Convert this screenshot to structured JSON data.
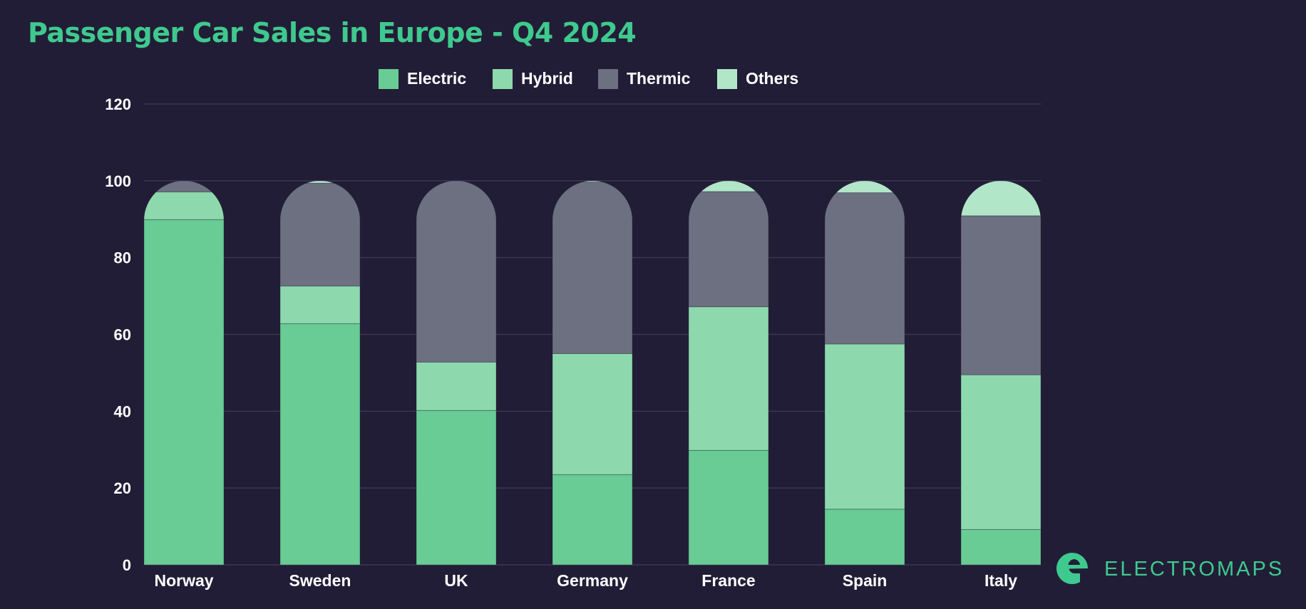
{
  "colors": {
    "background": "#221d36",
    "title": "#3fc98e",
    "gridline": "#3b3652",
    "text": "#ffffff",
    "brand": "#3fc98e"
  },
  "chart_data": {
    "type": "bar",
    "stacked": true,
    "title": "Passenger Car Sales in Europe - Q4 2024",
    "xlabel": "",
    "ylabel": "",
    "ylim": [
      0,
      120
    ],
    "yticks": [
      0,
      20,
      40,
      60,
      80,
      100,
      120
    ],
    "grid": true,
    "legend_position": "top-center",
    "categories": [
      "Norway",
      "Sweden",
      "UK",
      "Germany",
      "France",
      "Spain",
      "Italy"
    ],
    "series": [
      {
        "name": "Electric",
        "color": "#68cc94",
        "values": [
          89.9,
          62.8,
          40.2,
          23.5,
          29.8,
          14.5,
          9.2
        ]
      },
      {
        "name": "Hybrid",
        "color": "#8dd9ad",
        "values": [
          7.2,
          9.8,
          12.6,
          31.5,
          37.4,
          43.0,
          40.3
        ]
      },
      {
        "name": "Thermic",
        "color": "#6c7080",
        "values": [
          2.9,
          26.8,
          47.2,
          44.7,
          30.0,
          39.4,
          41.4
        ]
      },
      {
        "name": "Others",
        "color": "#b2e6c9",
        "values": [
          0.0,
          0.6,
          0.0,
          0.3,
          2.8,
          3.1,
          9.1
        ]
      }
    ]
  },
  "brand": {
    "name": "ELECTROMAPS",
    "icon": "electromaps-logo-icon"
  }
}
